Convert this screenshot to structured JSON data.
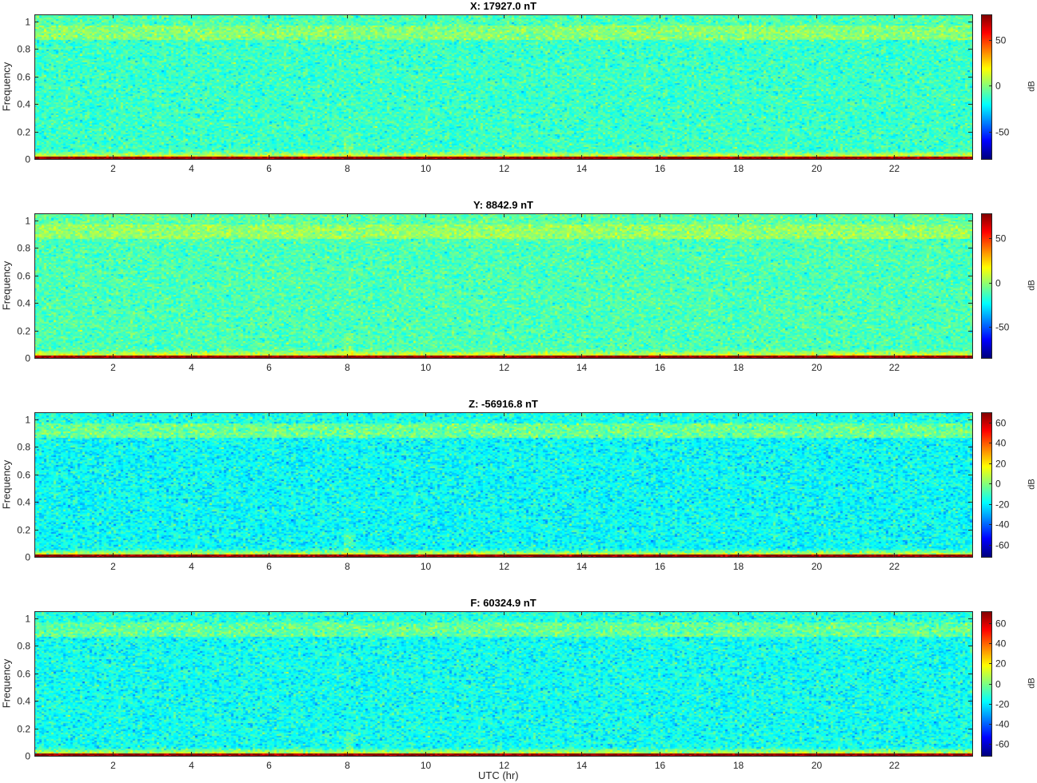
{
  "figure": {
    "xlabel": "UTC (hr)"
  },
  "colors": {
    "colormap": "jet",
    "axis": "#262626"
  },
  "chart_data": [
    {
      "type": "heatmap",
      "title": "X: 17927.0 nT",
      "xlabel": "",
      "ylabel": "Frequency",
      "colorbar_label": "dB",
      "xlim": [
        0,
        24
      ],
      "ylim": [
        0,
        1.05
      ],
      "clim": [
        -80,
        78
      ],
      "xticks": [
        2,
        4,
        6,
        8,
        10,
        12,
        14,
        16,
        18,
        20,
        22
      ],
      "yticks": [
        0,
        0.2,
        0.4,
        0.6,
        0.8,
        1
      ],
      "yticklabels": [
        "0",
        "0.2",
        "0.4",
        "0.6",
        "0.8",
        "1"
      ],
      "cticks": [
        50,
        0,
        -50
      ],
      "spectral_levels_db": {
        "dc_band": 75,
        "low_freq_band": 25,
        "background": -12,
        "band_0p9": 0
      }
    },
    {
      "type": "heatmap",
      "title": "Y: 8842.9 nT",
      "xlabel": "",
      "ylabel": "Frequency",
      "colorbar_label": "dB",
      "xlim": [
        0,
        24
      ],
      "ylim": [
        0,
        1.05
      ],
      "clim": [
        -85,
        78
      ],
      "xticks": [
        2,
        4,
        6,
        8,
        10,
        12,
        14,
        16,
        18,
        20,
        22
      ],
      "yticks": [
        0,
        0.2,
        0.4,
        0.6,
        0.8,
        1
      ],
      "yticklabels": [
        "0",
        "0.2",
        "0.4",
        "0.6",
        "0.8",
        "1"
      ],
      "cticks": [
        50,
        0,
        -50
      ],
      "spectral_levels_db": {
        "dc_band": 75,
        "low_freq_band": 25,
        "background": -12,
        "band_0p9": 0
      }
    },
    {
      "type": "heatmap",
      "title": "Z: -56916.8 nT",
      "xlabel": "",
      "ylabel": "Frequency",
      "colorbar_label": "dB",
      "xlim": [
        0,
        24
      ],
      "ylim": [
        0,
        1.05
      ],
      "clim": [
        -72,
        70
      ],
      "xticks": [
        2,
        4,
        6,
        8,
        10,
        12,
        14,
        16,
        18,
        20,
        22
      ],
      "yticks": [
        0,
        0.2,
        0.4,
        0.6,
        0.8,
        1
      ],
      "yticklabels": [
        "0",
        "0.2",
        "0.4",
        "0.6",
        "0.8",
        "1"
      ],
      "cticks": [
        60,
        40,
        20,
        0,
        -20,
        -40,
        -60
      ],
      "spectral_levels_db": {
        "dc_band": 68,
        "low_freq_band": 22,
        "background": -18,
        "band_0p9": -4
      }
    },
    {
      "type": "heatmap",
      "title": "F: 60324.9 nT",
      "xlabel": "UTC (hr)",
      "ylabel": "Frequency",
      "colorbar_label": "dB",
      "xlim": [
        0,
        24
      ],
      "ylim": [
        0,
        1.05
      ],
      "clim": [
        -72,
        72
      ],
      "xticks": [
        2,
        4,
        6,
        8,
        10,
        12,
        14,
        16,
        18,
        20,
        22
      ],
      "yticks": [
        0,
        0.2,
        0.4,
        0.6,
        0.8,
        1
      ],
      "yticklabels": [
        "0",
        "0.2",
        "0.4",
        "0.6",
        "0.8",
        "1"
      ],
      "cticks": [
        60,
        40,
        20,
        0,
        -20,
        -40,
        -60
      ],
      "spectral_levels_db": {
        "dc_band": 70,
        "low_freq_band": 22,
        "background": -16,
        "band_0p9": -4
      }
    }
  ]
}
